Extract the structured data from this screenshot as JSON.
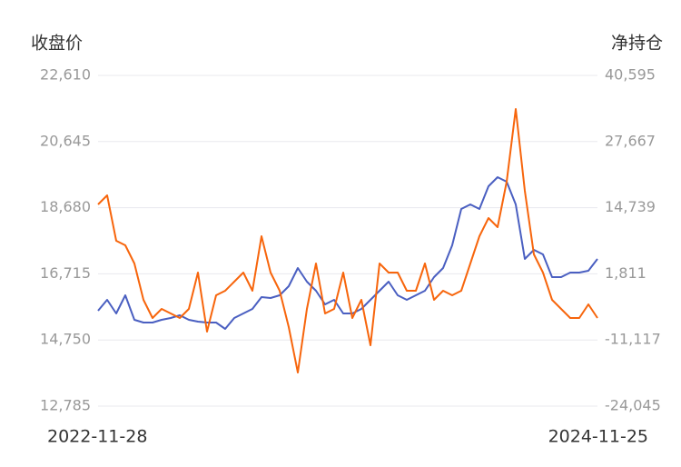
{
  "chart_data": {
    "type": "line",
    "categories": [
      "2022-11-28",
      null,
      null,
      null,
      null,
      null,
      null,
      null,
      null,
      null,
      null,
      null,
      null,
      null,
      null,
      null,
      null,
      null,
      null,
      null,
      null,
      null,
      null,
      null,
      null,
      null,
      null,
      null,
      null,
      null,
      null,
      null,
      null,
      null,
      null,
      null,
      null,
      null,
      null,
      null,
      null,
      null,
      null,
      null,
      null,
      null,
      null,
      null,
      null,
      null,
      null,
      null,
      null,
      null,
      null,
      "2024-11-25"
    ],
    "series": [
      {
        "name": "收盘价",
        "color": "#4a5fc1",
        "axis": "y",
        "values": [
          15620,
          15943,
          15539,
          16078,
          15350,
          15269,
          15269,
          15350,
          15404,
          15485,
          15350,
          15296,
          15269,
          15269,
          15080,
          15404,
          15539,
          15674,
          16024,
          15997,
          16078,
          16348,
          16888,
          16483,
          16213,
          15809,
          15943,
          15539,
          15539,
          15674,
          15943,
          16213,
          16483,
          16078,
          15943,
          16078,
          16213,
          16618,
          16888,
          17563,
          18642,
          18777,
          18642,
          19317,
          19587,
          19452,
          18777,
          17158,
          17428,
          17293,
          16618,
          16618,
          16753,
          16753,
          16807,
          17158
        ]
      },
      {
        "name": "净持仓",
        "color": "#f7650c",
        "axis": "y2",
        "values": [
          15379,
          17154,
          8275,
          7388,
          3836,
          -3267,
          -6819,
          -5043,
          -5931,
          -6819,
          -5043,
          2060,
          -9483,
          -2379,
          -1491,
          284,
          2060,
          -1491,
          9163,
          2060,
          -1491,
          -8595,
          -17474,
          -5043,
          3836,
          -5931,
          -5043,
          2060,
          -6819,
          -3267,
          -12146,
          3836,
          2060,
          2060,
          -1491,
          -1491,
          3836,
          -3267,
          -1491,
          -2379,
          -1491,
          3836,
          9163,
          12715,
          10939,
          19818,
          34025,
          18042,
          5612,
          2060,
          -3267,
          -5043,
          -6819,
          -6819,
          -4155,
          -6819
        ]
      }
    ],
    "ylim": [
      12785,
      22610
    ],
    "yticks": [
      {
        "value": 12785,
        "label": "12,785"
      },
      {
        "value": 14750,
        "label": "14,750"
      },
      {
        "value": 16715,
        "label": "16,715"
      },
      {
        "value": 18680,
        "label": "18,680"
      },
      {
        "value": 20645,
        "label": "20,645"
      },
      {
        "value": 22610,
        "label": "22,610"
      }
    ],
    "y2lim": [
      -24045,
      40595
    ],
    "y2ticks": [
      {
        "value": -24045,
        "label": "-24,045"
      },
      {
        "value": -11117,
        "label": "-11,117"
      },
      {
        "value": 1811,
        "label": "1,811"
      },
      {
        "value": 14739,
        "label": "14,739"
      },
      {
        "value": 27667,
        "label": "27,667"
      },
      {
        "value": 40595,
        "label": "40,595"
      }
    ],
    "grid": true
  }
}
